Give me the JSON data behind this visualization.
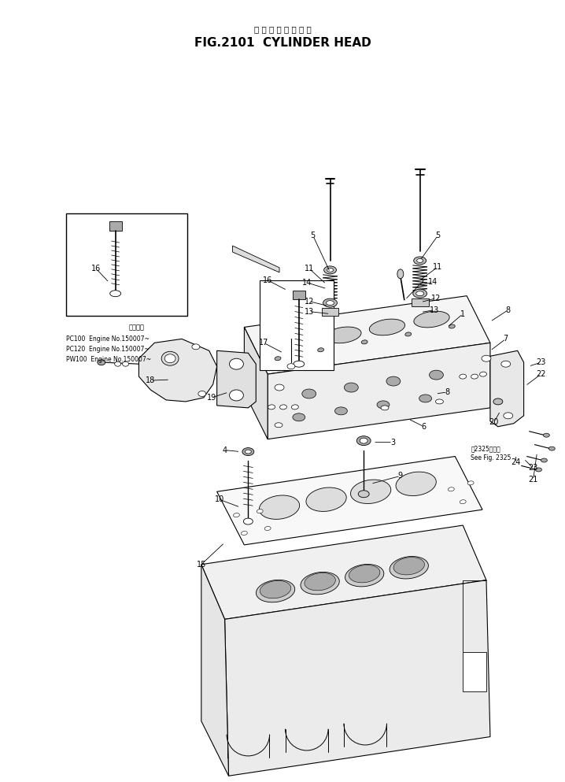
{
  "title_japanese": "シ リ ン ダ ー ヘ ッ ド",
  "title_english": "FIG.2101  CYLINDER HEAD",
  "bg_color": "#ffffff",
  "fig_width": 7.18,
  "fig_height": 9.93,
  "dpi": 100,
  "inset_text_lines": [
    "適用号識",
    "PC100  Engine No.150007~",
    "PC120  Engine No.150007~",
    "PW100  Engine No.150007~"
  ],
  "note_text": [
    "第2325図参照",
    "See Fig. 2325"
  ]
}
